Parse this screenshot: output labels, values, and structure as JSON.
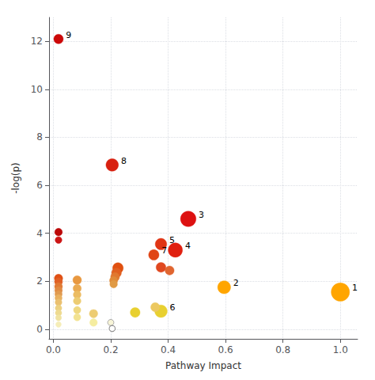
{
  "chart_data": {
    "type": "scatter",
    "xlabel": "Pathway Impact",
    "ylabel": "-log(p)",
    "x": [
      1.0,
      0.595,
      0.47,
      0.425,
      0.375,
      0.375,
      0.35,
      0.205,
      0.018,
      0.225,
      0.22,
      0.215,
      0.21,
      0.21,
      0.375,
      0.405,
      0.018,
      0.018,
      0.018,
      0.018,
      0.018,
      0.018,
      0.018,
      0.018,
      0.018,
      0.018,
      0.018,
      0.018,
      0.018,
      0.083,
      0.083,
      0.083,
      0.083,
      0.083,
      0.083,
      0.14,
      0.14,
      0.2,
      0.205,
      0.285,
      0.355
    ],
    "values": [
      1.55,
      1.75,
      4.6,
      3.3,
      3.55,
      0.75,
      3.1,
      6.85,
      12.1,
      2.55,
      2.35,
      2.18,
      2.03,
      1.88,
      2.58,
      2.45,
      4.05,
      3.72,
      2.12,
      1.98,
      1.78,
      1.62,
      1.46,
      1.3,
      1.12,
      0.88,
      0.68,
      0.48,
      0.2,
      2.05,
      1.7,
      1.44,
      1.18,
      0.8,
      0.5,
      0.65,
      0.28,
      0.28,
      0.03,
      0.7,
      0.92
    ],
    "sizes": [
      280,
      140,
      200,
      170,
      110,
      130,
      90,
      130,
      75,
      95,
      80,
      65,
      55,
      48,
      80,
      68,
      48,
      38,
      58,
      52,
      52,
      48,
      44,
      42,
      38,
      36,
      34,
      30,
      26,
      62,
      56,
      50,
      48,
      44,
      42,
      58,
      48,
      32,
      30,
      80,
      68
    ],
    "colors": [
      "#FFA500",
      "#FFA500",
      "#DD1111",
      "#E02010",
      "#E03515",
      "#E8D030",
      "#E04515",
      "#D82010",
      "#CC0808",
      "#E05010",
      "#E06020",
      "#E07830",
      "#E08A38",
      "#E09A44",
      "#E04820",
      "#E06530",
      "#BB0808",
      "#CC1515",
      "#E05015",
      "#E06025",
      "#E07A35",
      "#E08A42",
      "#E09A50",
      "#E8B060",
      "#EAC070",
      "#ECD080",
      "#EEDA90",
      "#F0E2A0",
      "#F5EDB8",
      "#E89840",
      "#EAAA52",
      "#ECBC62",
      "#EDCC72",
      "#EFD880",
      "#F2E290",
      "#EDCC72",
      "#F5EDA0",
      "#F8F5D8",
      "#FFFFFF",
      "#E8D030",
      "#ECC860"
    ],
    "edge_colors": [
      "#FFA500",
      "#FFA500",
      "#DD1111",
      "#E02010",
      "#E03515",
      "#E8D030",
      "#E04515",
      "#D82010",
      "#CC0808",
      "#E05010",
      "#E06020",
      "#E07830",
      "#E08A38",
      "#E09A44",
      "#E04820",
      "#E06530",
      "#BB0808",
      "#CC1515",
      "#E05015",
      "#E06025",
      "#E07A35",
      "#E08A42",
      "#E09A50",
      "#E8B060",
      "#EAC070",
      "#ECD080",
      "#EEDA90",
      "#F0E2A0",
      "#F5EDB8",
      "#E89840",
      "#EAAA52",
      "#ECBC62",
      "#EDCC72",
      "#EFD880",
      "#F2E290",
      "#EDCC72",
      "#F5EDA0",
      "#aaaaaa",
      "#888888",
      "#E8D030",
      "#ECC860"
    ],
    "labels": [
      "1",
      "2",
      "3",
      "4",
      "5",
      "6",
      "7",
      "8",
      "9",
      null,
      null,
      null,
      null,
      null,
      null,
      null,
      null,
      null,
      null,
      null,
      null,
      null,
      null,
      null,
      null,
      null,
      null,
      null,
      null,
      null,
      null,
      null,
      null,
      null,
      null,
      null,
      null,
      null,
      null,
      null,
      null
    ],
    "xlim": [
      -0.015,
      1.06
    ],
    "ylim": [
      -0.4,
      13.0
    ],
    "xticks": [
      {
        "value": 0.0,
        "label": "0.0"
      },
      0.2,
      0.4,
      0.6,
      0.8,
      {
        "value": 1.0,
        "label": "1.0"
      }
    ],
    "yticks": [
      0,
      2,
      4,
      6,
      8,
      10,
      12
    ],
    "grid": true
  }
}
